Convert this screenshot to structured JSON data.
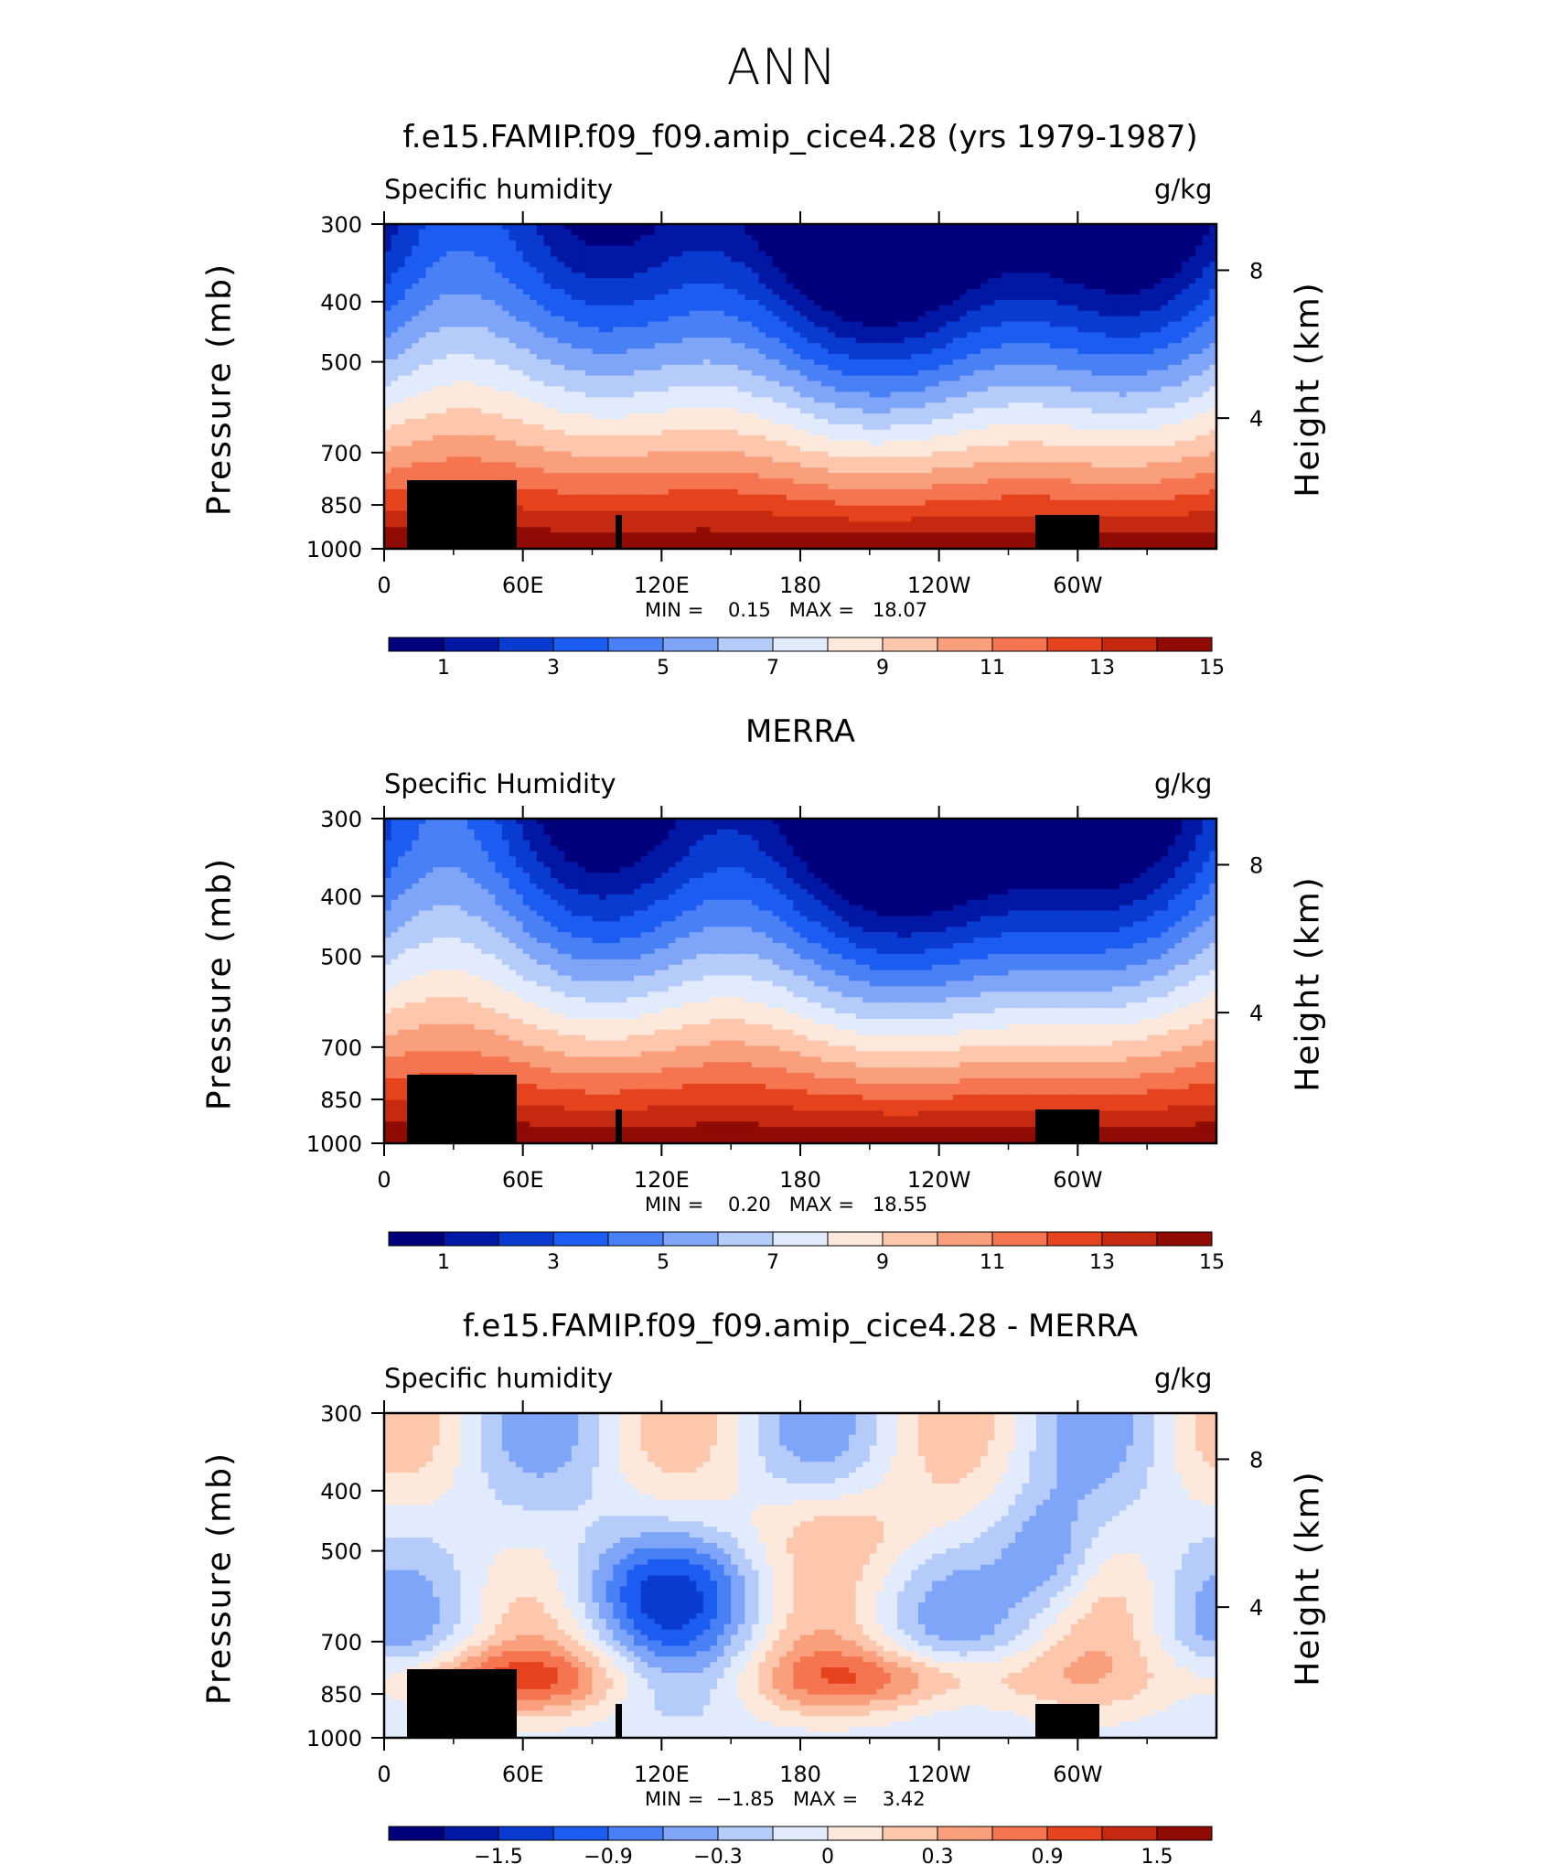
{
  "figure_title": "ANN",
  "panels": [
    {
      "title": "f.e15.FAMIP.f09_f09.amip_cice4.28 (yrs 1979-1987)",
      "left_label": "Specific humidity",
      "right_label": "g/kg",
      "min_text": "MIN =    0.15   MAX =   18.07"
    },
    {
      "title": "MERRA",
      "left_label": "Specific Humidity",
      "right_label": "g/kg",
      "min_text": "MIN =    0.20   MAX =   18.55"
    },
    {
      "title": "f.e15.FAMIP.f09_f09.amip_cice4.28 - MERRA",
      "left_label": "Specific humidity",
      "right_label": "g/kg",
      "min_text": "MIN =  −1.85   MAX =    3.42"
    }
  ],
  "chart_data": [
    {
      "type": "heatmap",
      "title": "f.e15.FAMIP.f09_f09.amip_cice4.28 (yrs 1979-1987)",
      "ylabel": "Pressure (mb)",
      "y2label": "Height (km)",
      "x_ticks": [
        "0",
        "60E",
        "120E",
        "180",
        "120W",
        "60W"
      ],
      "x_tick_values": [
        0,
        60,
        120,
        180,
        240,
        300
      ],
      "xlim": [
        0,
        360
      ],
      "y_ticks": [
        300,
        400,
        500,
        700,
        850,
        1000
      ],
      "ylim": [
        1000,
        300
      ],
      "y_scale": "log",
      "y2_ticks": [
        8,
        4
      ],
      "colorbar_labels": [
        "1",
        "3",
        "5",
        "7",
        "9",
        "11",
        "13",
        "15"
      ],
      "colorbar_colors": [
        "#00007c",
        "#0217a4",
        "#0a3bd0",
        "#1c5cf0",
        "#4a80f5",
        "#7ea5f8",
        "#b5ccfb",
        "#e2ebfc",
        "#fde9dc",
        "#fdc7ad",
        "#fa9f7c",
        "#f47550",
        "#e5431e",
        "#c52a10",
        "#8f0b04"
      ],
      "min": 0.15,
      "max": 18.07
    },
    {
      "type": "heatmap",
      "title": "MERRA",
      "ylabel": "Pressure (mb)",
      "y2label": "Height (km)",
      "x_ticks": [
        "0",
        "60E",
        "120E",
        "180",
        "120W",
        "60W"
      ],
      "x_tick_values": [
        0,
        60,
        120,
        180,
        240,
        300
      ],
      "xlim": [
        0,
        360
      ],
      "y_ticks": [
        300,
        400,
        500,
        700,
        850,
        1000
      ],
      "ylim": [
        1000,
        300
      ],
      "y_scale": "log",
      "y2_ticks": [
        8,
        4
      ],
      "colorbar_labels": [
        "1",
        "3",
        "5",
        "7",
        "9",
        "11",
        "13",
        "15"
      ],
      "colorbar_colors": [
        "#00007c",
        "#0217a4",
        "#0a3bd0",
        "#1c5cf0",
        "#4a80f5",
        "#7ea5f8",
        "#b5ccfb",
        "#e2ebfc",
        "#fde9dc",
        "#fdc7ad",
        "#fa9f7c",
        "#f47550",
        "#e5431e",
        "#c52a10",
        "#8f0b04"
      ],
      "min": 0.2,
      "max": 18.55
    },
    {
      "type": "heatmap",
      "title": "f.e15.FAMIP.f09_f09.amip_cice4.28 - MERRA",
      "ylabel": "Pressure (mb)",
      "y2label": "Height (km)",
      "x_ticks": [
        "0",
        "60E",
        "120E",
        "180",
        "120W",
        "60W"
      ],
      "x_tick_values": [
        0,
        60,
        120,
        180,
        240,
        300
      ],
      "xlim": [
        0,
        360
      ],
      "y_ticks": [
        300,
        400,
        500,
        700,
        850,
        1000
      ],
      "ylim": [
        1000,
        300
      ],
      "y_scale": "log",
      "y2_ticks": [
        8,
        4
      ],
      "colorbar_labels": [
        "−1.5",
        "−0.9",
        "−0.3",
        "0",
        "0.3",
        "0.9",
        "1.5"
      ],
      "colorbar_colors": [
        "#00007c",
        "#0217a4",
        "#0a3bd0",
        "#1c5cf0",
        "#4a80f5",
        "#7ea5f8",
        "#b5ccfb",
        "#e2ebfc",
        "#fde9dc",
        "#fdc7ad",
        "#fa9f7c",
        "#f47550",
        "#e5431e",
        "#c52a10",
        "#8f0b04"
      ],
      "min": -1.85,
      "max": 3.42
    }
  ]
}
